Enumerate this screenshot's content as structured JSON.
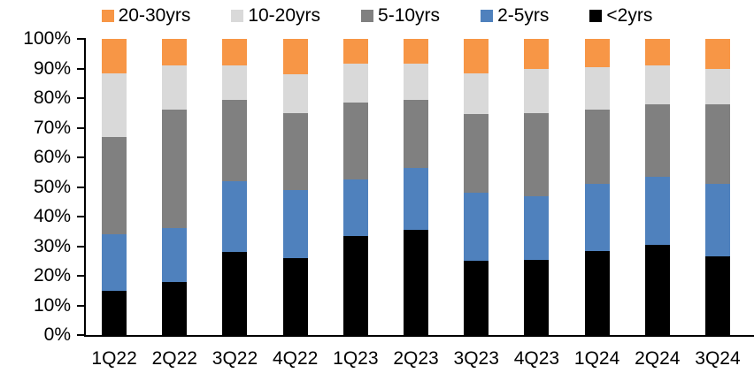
{
  "chart_data": {
    "type": "bar",
    "variant": "stacked-100-percent",
    "title": "",
    "xlabel": "",
    "ylabel": "",
    "grid": false,
    "legend_position": "top",
    "categories": [
      "1Q22",
      "2Q22",
      "3Q22",
      "4Q22",
      "1Q23",
      "2Q23",
      "3Q23",
      "4Q23",
      "1Q24",
      "2Q24",
      "3Q24"
    ],
    "series": [
      {
        "name": "20-30yrs",
        "color": "#F79646",
        "values": [
          11.5,
          9,
          9,
          12,
          8.5,
          8.5,
          11.5,
          10,
          9.5,
          9,
          10
        ]
      },
      {
        "name": "10-20yrs",
        "color": "#D9D9D9",
        "values": [
          21.5,
          15,
          11.5,
          13,
          13,
          12,
          14,
          15,
          14.5,
          13,
          12
        ]
      },
      {
        "name": "5-10yrs",
        "color": "#808080",
        "values": [
          33,
          40,
          27.5,
          26,
          26,
          23,
          26.5,
          28,
          25,
          24.5,
          27
        ]
      },
      {
        "name": "2-5yrs",
        "color": "#4F81BD",
        "values": [
          19,
          18,
          24,
          23,
          19,
          21,
          23,
          21.5,
          22.5,
          23,
          24.5
        ]
      },
      {
        "name": "<2yrs",
        "color": "#000000",
        "values": [
          15,
          18,
          28,
          26,
          33.5,
          35.5,
          25,
          25.5,
          28.5,
          30.5,
          26.5
        ]
      }
    ],
    "y_axis": {
      "min": 0,
      "max": 100,
      "tick_labels_top_down": [
        "100%",
        "90%",
        "80%",
        "70%",
        "60%",
        "50%",
        "40%",
        "30%",
        "20%",
        "10%",
        "0%"
      ]
    },
    "colors": {
      "axis": "#000000",
      "text": "#000000",
      "background": "#FFFFFF"
    }
  }
}
